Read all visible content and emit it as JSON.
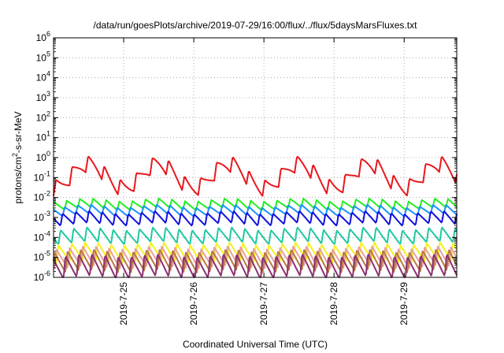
{
  "chart_data": {
    "type": "line",
    "title": "/data/run/goesPlots/archive/2019-07-29/16:00/flux/../flux/5daysMarsFluxes.txt",
    "xlabel": "Coordinated Universal Time (UTC)",
    "ylabel_prefix": "protons/cm",
    "ylabel_sup": "2",
    "ylabel_suffix": "-s-sr-MeV",
    "x_range": [
      "2019-07-24 00:00",
      "2019-07-29 18:00"
    ],
    "xticks": [
      "2019-7-25",
      "2019-7-26",
      "2019-7-27",
      "2019-7-28",
      "2019-7-29"
    ],
    "yscale": "log",
    "ylim": [
      1e-06,
      1000000.0
    ],
    "ytick_base": "10",
    "ytick_exponents": [
      "-6",
      "-5",
      "-4",
      "-3",
      "-2",
      "-1",
      "0",
      "1",
      "2",
      "3",
      "4",
      "5",
      "6"
    ],
    "grid": true,
    "series": [
      {
        "color": "#e8181e",
        "base": 0.12,
        "amp": 0.7,
        "sawtooth_period_h": 5.5,
        "sawtooth_amp": 0.5,
        "diurnal_amp": 0.6
      },
      {
        "color": "#22ee22",
        "base": 0.0045,
        "amp": 0.15,
        "sawtooth_period_h": 4.5,
        "sawtooth_amp": 0.28,
        "diurnal_amp": 0.08
      },
      {
        "color": "#1e90ff",
        "base": 0.0022,
        "amp": 0.15,
        "sawtooth_period_h": 4.5,
        "sawtooth_amp": 0.28,
        "diurnal_amp": 0.08
      },
      {
        "color": "#1010e0",
        "base": 0.0009,
        "amp": 0.15,
        "sawtooth_period_h": 4.5,
        "sawtooth_amp": 0.38,
        "diurnal_amp": 0.08
      },
      {
        "color": "#20c8a0",
        "base": 0.00012,
        "amp": 0.15,
        "sawtooth_period_h": 4.5,
        "sawtooth_amp": 0.45,
        "diurnal_amp": 0.08
      },
      {
        "color": "#f5f020",
        "base": 1.8e-05,
        "amp": 0.15,
        "sawtooth_period_h": 4.5,
        "sawtooth_amp": 0.55,
        "diurnal_amp": 0.08
      },
      {
        "color": "#e8a0a0",
        "base": 1e-05,
        "amp": 0.15,
        "sawtooth_period_h": 4.5,
        "sawtooth_amp": 0.6,
        "diurnal_amp": 0.08
      },
      {
        "color": "#b87840",
        "base": 6.5e-06,
        "amp": 0.15,
        "sawtooth_period_h": 4.5,
        "sawtooth_amp": 0.65,
        "diurnal_amp": 0.08
      },
      {
        "color": "#8a3070",
        "base": 3.5e-06,
        "amp": 0.15,
        "sawtooth_period_h": 4.5,
        "sawtooth_amp": 0.7,
        "diurnal_amp": 0.08
      }
    ]
  }
}
